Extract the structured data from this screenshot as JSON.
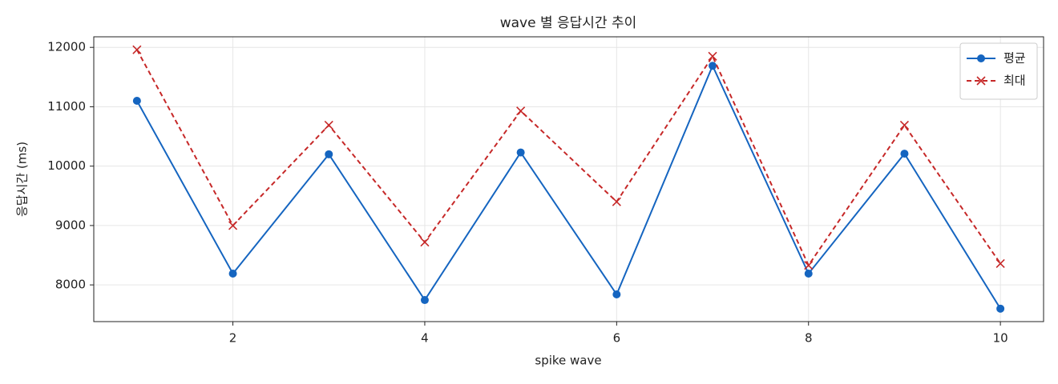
{
  "chart_data": {
    "type": "line",
    "title": "wave 별 응답시간 추이",
    "x_label": "spike wave",
    "y_label": "응답시간 (ms)",
    "x": [
      1,
      2,
      3,
      4,
      5,
      6,
      7,
      8,
      9,
      10
    ],
    "series": [
      {
        "name": "평균",
        "color": "#1565c0",
        "marker": "circle",
        "dash": "solid",
        "values": [
          11100,
          8190,
          10200,
          7745,
          10230,
          7840,
          11690,
          8190,
          10210,
          7600
        ]
      },
      {
        "name": "최대",
        "color": "#c62828",
        "marker": "x",
        "dash": "dashed",
        "values": [
          11960,
          9000,
          10690,
          8720,
          10930,
          9400,
          11850,
          8330,
          10690,
          8360
        ]
      }
    ],
    "xlim": [
      0.55,
      10.45
    ],
    "xticks": [
      2,
      4,
      6,
      8,
      10
    ],
    "ylim": [
      7382,
      12178
    ],
    "yticks": [
      8000,
      9000,
      10000,
      11000,
      12000
    ],
    "grid": true,
    "legend": "upper-right"
  }
}
